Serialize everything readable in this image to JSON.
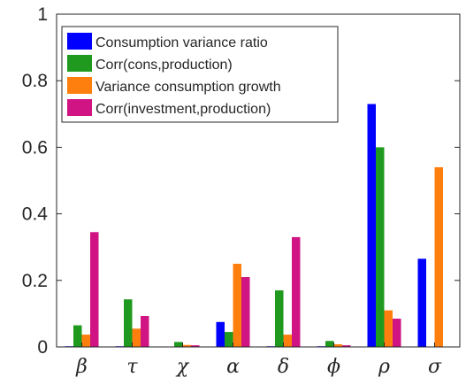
{
  "chart_data": {
    "type": "bar",
    "title": "",
    "xlabel": "",
    "ylabel": "",
    "ylim": [
      0,
      1
    ],
    "yticks": [
      "0",
      "0.2",
      "0.4",
      "0.6",
      "0.8",
      "1"
    ],
    "categories": [
      "β",
      "τ",
      "χ",
      "α",
      "δ",
      "ϕ",
      "ρ",
      "σ"
    ],
    "legend_position": "top-left",
    "grid": false,
    "series": [
      {
        "name": "Consumption variance ratio",
        "color": "#0000ff",
        "values": [
          0.002,
          0.002,
          0.001,
          0.075,
          0.002,
          0.002,
          0.73,
          0.265
        ]
      },
      {
        "name": "Corr(cons,production)",
        "color": "#1f9a1f",
        "values": [
          0.065,
          0.143,
          0.015,
          0.045,
          0.17,
          0.018,
          0.6,
          0.0
        ]
      },
      {
        "name": "Variance consumption growth",
        "color": "#ff7f0e",
        "values": [
          0.037,
          0.055,
          0.006,
          0.25,
          0.037,
          0.008,
          0.11,
          0.54
        ]
      },
      {
        "name": "Corr(investment,production)",
        "color": "#d01483",
        "values": [
          0.345,
          0.093,
          0.005,
          0.21,
          0.33,
          0.005,
          0.085,
          0.0
        ]
      }
    ]
  }
}
